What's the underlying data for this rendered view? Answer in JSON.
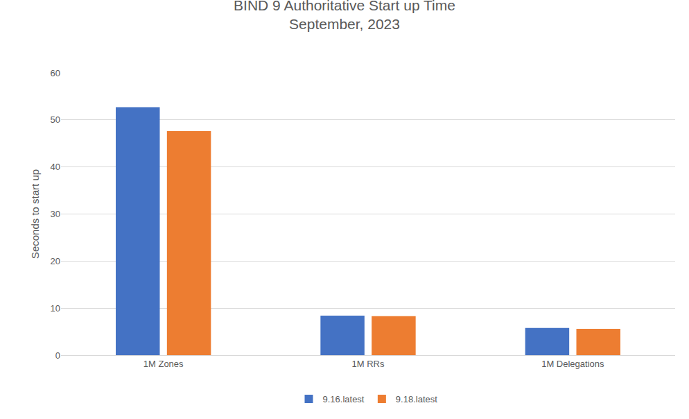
{
  "chart_data": {
    "type": "bar",
    "title": "BIND 9 Authoritative Start up Time",
    "subtitle": "September, 2023",
    "y_label": "Seconds to start up",
    "categories": [
      "1M Zones",
      "1M RRs",
      "1M Delegations"
    ],
    "series": [
      {
        "name": "9.16.latest",
        "color": "#4472c4",
        "values": [
          52.7,
          8.4,
          5.8
        ]
      },
      {
        "name": "9.18.latest",
        "color": "#ed7d31",
        "values": [
          47.6,
          8.3,
          5.6
        ]
      }
    ],
    "ylim": [
      0,
      60
    ],
    "yticks": [
      0,
      10,
      20,
      30,
      40,
      50,
      60
    ],
    "grid": true,
    "legend": "bottom"
  }
}
